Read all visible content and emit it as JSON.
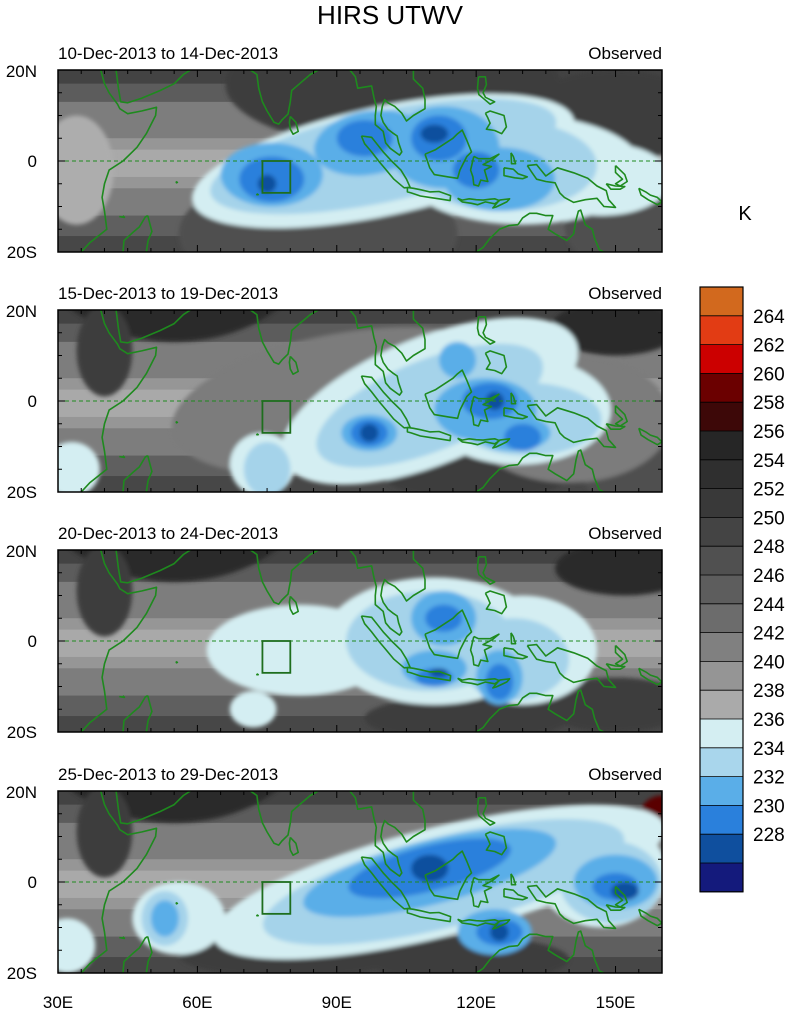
{
  "title": "HIRS UTWV",
  "panel_label": "Observed",
  "panels": [
    {
      "date_range": "10-Dec-2013 to 14-Dec-2013"
    },
    {
      "date_range": "15-Dec-2013 to 19-Dec-2013"
    },
    {
      "date_range": "20-Dec-2013 to 24-Dec-2013"
    },
    {
      "date_range": "25-Dec-2013 to 29-Dec-2013"
    }
  ],
  "lat_labels": [
    "20N",
    "0",
    "20S"
  ],
  "lon_labels": [
    "30E",
    "60E",
    "90E",
    "120E",
    "150E"
  ],
  "colorbar": {
    "unit": "K",
    "labels": [
      "264",
      "262",
      "260",
      "258",
      "256",
      "254",
      "252",
      "250",
      "248",
      "246",
      "244",
      "242",
      "240",
      "238",
      "236",
      "234",
      "232",
      "230",
      "228"
    ],
    "colors": [
      "#d2691e",
      "#e23c14",
      "#cc0000",
      "#6b0000",
      "#3d0808",
      "#262626",
      "#2f2f2f",
      "#393939",
      "#444444",
      "#505050",
      "#5d5d5d",
      "#6c6c6c",
      "#808080",
      "#959595",
      "#aaaaaa",
      "#d4eef2",
      "#a9d6ec",
      "#5aaee8",
      "#2a80dc",
      "#0f4f9e",
      "#141a7c"
    ]
  },
  "colors": {
    "coastline": "#1e8a1e",
    "equator": "#1e8a1e"
  }
}
